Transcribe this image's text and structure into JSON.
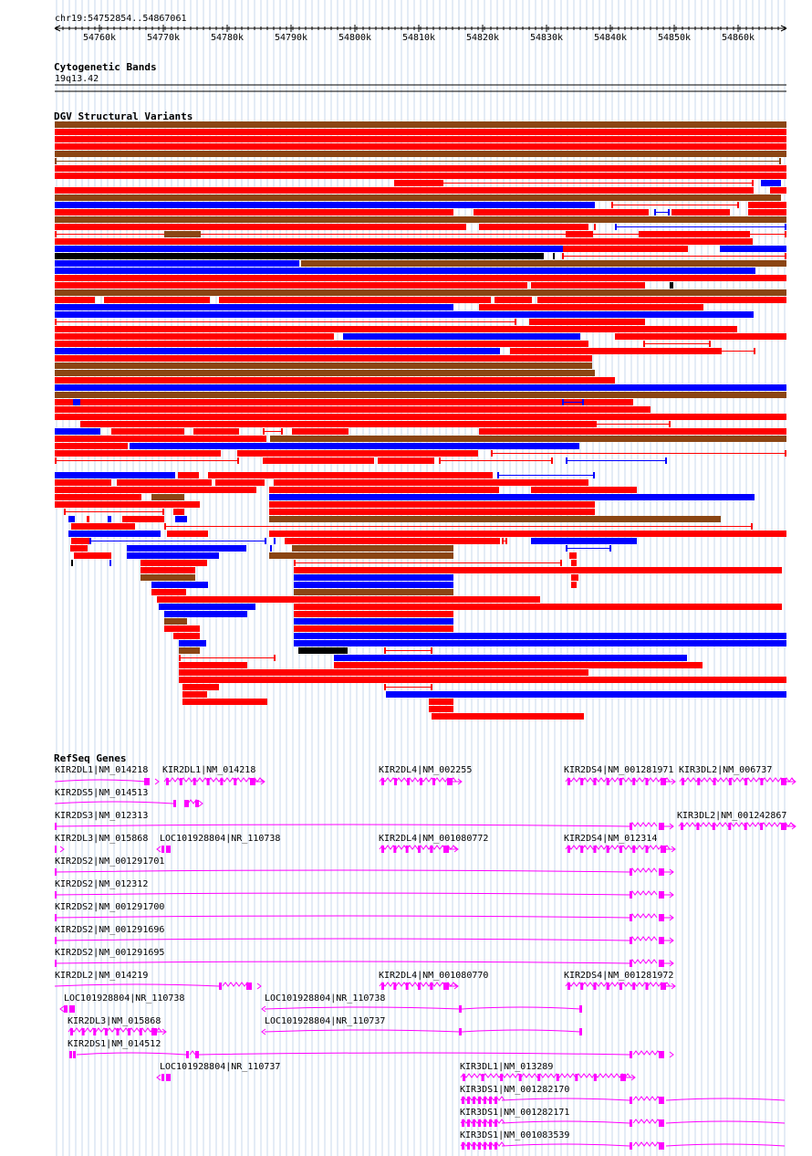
{
  "location": "chr19:54752854..54867061",
  "ruler": {
    "ticks": [
      "54760k",
      "54770k",
      "54780k",
      "54790k",
      "54800k",
      "54810k",
      "54820k",
      "54830k",
      "54840k",
      "54850k",
      "54860k"
    ]
  },
  "tracks": {
    "cytobands": {
      "title": "Cytogenetic Bands",
      "band": "19q13.42"
    },
    "dgv": {
      "title": "DGV Structural Variants"
    },
    "refseq": {
      "title": "RefSeq Genes"
    }
  },
  "colors": {
    "gain": "#ff0000",
    "loss": "#0000ff",
    "gain_loss": "#8b4513",
    "complex": "#000000",
    "gene": "#ff00ff",
    "grid": "#c8d8ee"
  },
  "genes": [
    {
      "label": "KIR2DL1|NM_014218"
    },
    {
      "label": "KIR2DL1|NM_014218"
    },
    {
      "label": "KIR2DL4|NM_002255"
    },
    {
      "label": "KIR2DS4|NM_001281971"
    },
    {
      "label": "KIR3DL2|NM_006737"
    },
    {
      "label": "KIR2DS5|NM_014513"
    },
    {
      "label": "KIR2DS3|NM_012313"
    },
    {
      "label": "KIR3DL2|NM_001242867"
    },
    {
      "label": "KIR2DL3|NM_015868"
    },
    {
      "label": "LOC101928804|NR_110738"
    },
    {
      "label": "KIR2DL4|NM_001080772"
    },
    {
      "label": "KIR2DS4|NM_012314"
    },
    {
      "label": "KIR2DS2|NM_001291701"
    },
    {
      "label": "KIR2DS2|NM_012312"
    },
    {
      "label": "KIR2DS2|NM_001291700"
    },
    {
      "label": "KIR2DS2|NM_001291696"
    },
    {
      "label": "KIR2DS2|NM_001291695"
    },
    {
      "label": "KIR2DL2|NM_014219"
    },
    {
      "label": "KIR2DL4|NM_001080770"
    },
    {
      "label": "KIR2DS4|NM_001281972"
    },
    {
      "label": "LOC101928804|NR_110738"
    },
    {
      "label": "LOC101928804|NR_110738"
    },
    {
      "label": "KIR2DL3|NM_015868"
    },
    {
      "label": "LOC101928804|NR_110737"
    },
    {
      "label": "KIR2DS1|NM_014512"
    },
    {
      "label": "LOC101928804|NR_110737"
    },
    {
      "label": "KIR3DL1|NM_013289"
    },
    {
      "label": "KIR3DS1|NM_001282170"
    },
    {
      "label": "KIR3DS1|NM_001282171"
    },
    {
      "label": "KIR3DS1|NM_001083539"
    }
  ]
}
